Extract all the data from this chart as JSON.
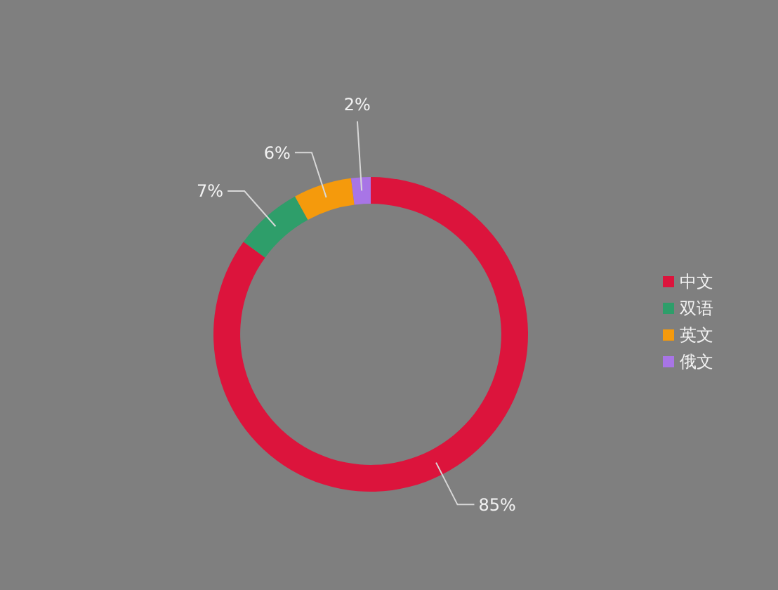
{
  "chart_data": {
    "type": "donut",
    "categories": [
      "中文",
      "双语",
      "英文",
      "俄文"
    ],
    "values": [
      85,
      7,
      6,
      2
    ],
    "colors": [
      "#dc143c",
      "#2e9e6a",
      "#f59a0c",
      "#a875e6"
    ],
    "value_labels": [
      "85%",
      "7%",
      "6%",
      "2%"
    ],
    "legend": "right"
  }
}
